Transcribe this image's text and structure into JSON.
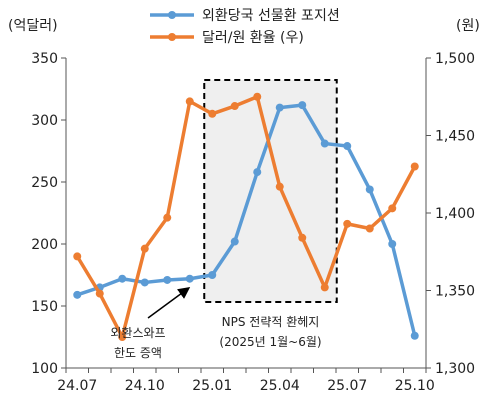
{
  "chart_data": {
    "type": "line",
    "left_axis_unit": "(억달러)",
    "right_axis_unit": "(원)",
    "ylim_left": [
      100,
      350
    ],
    "ylim_right": [
      1300,
      1500
    ],
    "y_ticks_left": [
      "100",
      "150",
      "200",
      "250",
      "300",
      "350"
    ],
    "y_ticks_right": [
      "1,300",
      "1,350",
      "1,400",
      "1,450",
      "1,500"
    ],
    "x_tick_labels": [
      "24.07",
      "24.10",
      "25.01",
      "25.04",
      "25.07",
      "25.10"
    ],
    "x": [
      "24.07",
      "24.08",
      "24.09",
      "24.10",
      "24.11",
      "24.12",
      "25.01",
      "25.02",
      "25.03",
      "25.04",
      "25.05",
      "25.06",
      "25.07",
      "25.08",
      "25.09",
      "25.10"
    ],
    "series": [
      {
        "name": "외환당국 선물환 포지션",
        "axis": "left",
        "color": "#5b9bd5",
        "values": [
          159,
          165,
          172,
          169,
          171,
          172,
          175,
          202,
          258,
          310,
          312,
          281,
          279,
          244,
          200,
          126
        ]
      },
      {
        "name": "달러/원 환율 (우)",
        "axis": "right",
        "color": "#ed7d31",
        "values": [
          1372,
          1348,
          1320,
          1377,
          1397,
          1472,
          1464,
          1469,
          1475,
          1417,
          1384,
          1352,
          1393,
          1390,
          1403,
          1430
        ]
      }
    ],
    "annotations": [
      {
        "lines": [
          "외환스와프",
          "한도 증액"
        ],
        "points_to_index": 5
      },
      {
        "lines": [
          "NPS 전략적 환헤지",
          "(2025년 1월~6월)"
        ],
        "box_from_index": 6,
        "box_to_index": 11
      }
    ],
    "legend_position": "top-center",
    "grid": false
  }
}
